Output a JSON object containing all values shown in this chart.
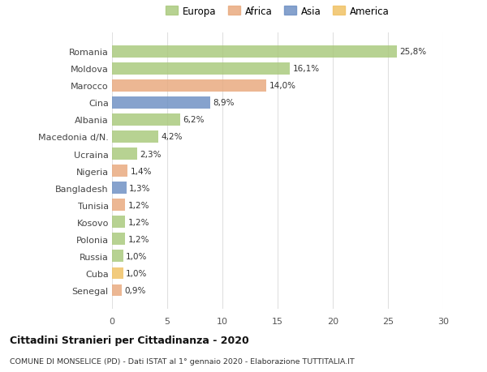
{
  "countries": [
    "Romania",
    "Moldova",
    "Marocco",
    "Cina",
    "Albania",
    "Macedonia d/N.",
    "Ucraina",
    "Nigeria",
    "Bangladesh",
    "Tunisia",
    "Kosovo",
    "Polonia",
    "Russia",
    "Cuba",
    "Senegal"
  ],
  "values": [
    25.8,
    16.1,
    14.0,
    8.9,
    6.2,
    4.2,
    2.3,
    1.4,
    1.3,
    1.2,
    1.2,
    1.2,
    1.0,
    1.0,
    0.9
  ],
  "labels": [
    "25,8%",
    "16,1%",
    "14,0%",
    "8,9%",
    "6,2%",
    "4,2%",
    "2,3%",
    "1,4%",
    "1,3%",
    "1,2%",
    "1,2%",
    "1,2%",
    "1,0%",
    "1,0%",
    "0,9%"
  ],
  "continents": [
    "Europa",
    "Europa",
    "Africa",
    "Asia",
    "Europa",
    "Europa",
    "Europa",
    "Africa",
    "Asia",
    "Africa",
    "Europa",
    "Europa",
    "Europa",
    "America",
    "Africa"
  ],
  "colors": {
    "Europa": "#a8c87a",
    "Africa": "#e8a87c",
    "Asia": "#6b8ec2",
    "America": "#f0c060"
  },
  "xlim": [
    0,
    30
  ],
  "xticks": [
    0,
    5,
    10,
    15,
    20,
    25,
    30
  ],
  "title": "Cittadini Stranieri per Cittadinanza - 2020",
  "subtitle": "COMUNE DI MONSELICE (PD) - Dati ISTAT al 1° gennaio 2020 - Elaborazione TUTTITALIA.IT",
  "background_color": "#ffffff",
  "grid_color": "#e0e0e0",
  "bar_height": 0.7,
  "legend_items": [
    "Europa",
    "Africa",
    "Asia",
    "America"
  ]
}
